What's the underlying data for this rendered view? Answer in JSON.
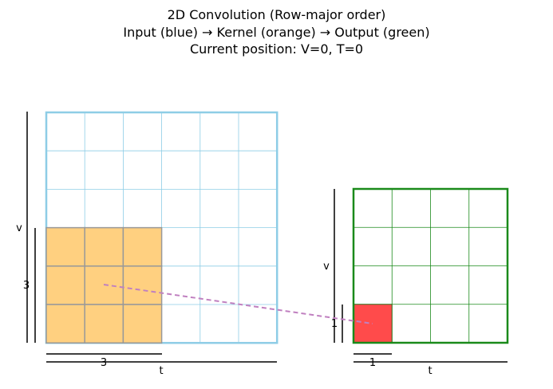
{
  "title": {
    "line1": "2D Convolution (Row-major order)",
    "line2": "Input (blue) → Kernel (orange) → Output (green)",
    "line3": "Current position: V=0, T=0"
  },
  "input_grid": {
    "rows": 6,
    "cols": 6,
    "color": "#8ecde6"
  },
  "kernel": {
    "size": 3,
    "color": "#ffd080",
    "border": "#999999",
    "row": 0,
    "col": 0
  },
  "output_grid": {
    "rows": 4,
    "cols": 4,
    "color": "#1a8a1a"
  },
  "output_cell": {
    "row": 0,
    "col": 0,
    "size": 1,
    "color": "#ff4b4b"
  },
  "connector_color": "#c080c0",
  "labels": {
    "input_v": "v",
    "input_t": "t",
    "kernel_v": "3",
    "kernel_t": "3",
    "output_v": "v",
    "output_t": "t",
    "cell_v": "1",
    "cell_t": "1"
  }
}
